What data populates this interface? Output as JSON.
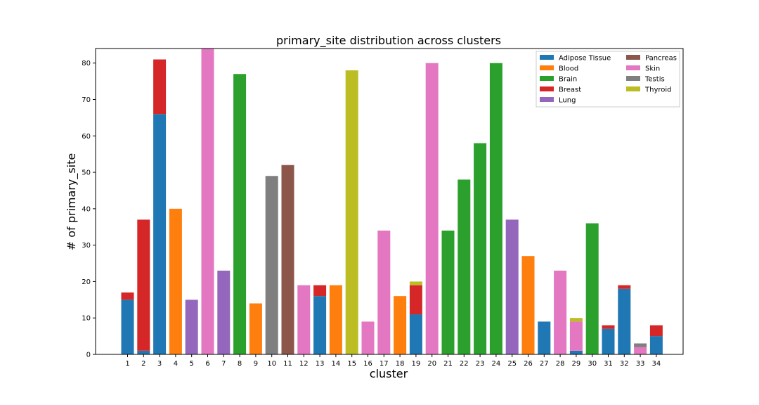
{
  "chart_data": {
    "type": "bar",
    "stacked": true,
    "title": "primary_site distribution across clusters",
    "xlabel": "cluster",
    "ylabel": "# of primary_site",
    "ylim": [
      0,
      84
    ],
    "yticks": [
      0,
      10,
      20,
      30,
      40,
      50,
      60,
      70,
      80
    ],
    "grid": false,
    "legend_position": "top-right",
    "categories": [
      "1",
      "2",
      "3",
      "4",
      "5",
      "6",
      "7",
      "8",
      "9",
      "10",
      "11",
      "12",
      "13",
      "14",
      "15",
      "16",
      "17",
      "18",
      "19",
      "20",
      "21",
      "22",
      "23",
      "24",
      "25",
      "26",
      "27",
      "28",
      "29",
      "30",
      "31",
      "32",
      "33",
      "34"
    ],
    "series": [
      {
        "name": "Adipose Tissue",
        "color": "#1f77b4",
        "values": [
          15,
          1,
          66,
          0,
          0,
          0,
          0,
          0,
          0,
          0,
          0,
          0,
          16,
          0,
          0,
          0,
          0,
          0,
          11,
          0,
          0,
          0,
          0,
          0,
          0,
          0,
          9,
          0,
          1,
          0,
          7,
          18,
          0,
          5
        ]
      },
      {
        "name": "Blood",
        "color": "#ff7f0e",
        "values": [
          0,
          0,
          0,
          40,
          0,
          0,
          0,
          0,
          14,
          0,
          0,
          0,
          0,
          19,
          0,
          0,
          0,
          16,
          0,
          0,
          0,
          0,
          0,
          0,
          0,
          27,
          0,
          0,
          0,
          0,
          0,
          0,
          0,
          0
        ]
      },
      {
        "name": "Brain",
        "color": "#2ca02c",
        "values": [
          0,
          0,
          0,
          0,
          0,
          0,
          0,
          77,
          0,
          0,
          0,
          0,
          0,
          0,
          0,
          0,
          0,
          0,
          0,
          0,
          34,
          48,
          58,
          80,
          0,
          0,
          0,
          0,
          0,
          36,
          0,
          0,
          0,
          0
        ]
      },
      {
        "name": "Breast",
        "color": "#d62728",
        "values": [
          2,
          36,
          15,
          0,
          0,
          0,
          0,
          0,
          0,
          0,
          0,
          0,
          3,
          0,
          0,
          0,
          0,
          0,
          8,
          0,
          0,
          0,
          0,
          0,
          0,
          0,
          0,
          0,
          0,
          0,
          1,
          1,
          0,
          3
        ]
      },
      {
        "name": "Lung",
        "color": "#9467bd",
        "values": [
          0,
          0,
          0,
          0,
          15,
          0,
          23,
          0,
          0,
          0,
          0,
          0,
          0,
          0,
          0,
          0,
          0,
          0,
          0,
          0,
          0,
          0,
          0,
          0,
          37,
          0,
          0,
          0,
          0,
          0,
          0,
          0,
          0,
          0
        ]
      },
      {
        "name": "Pancreas",
        "color": "#8c564b",
        "values": [
          0,
          0,
          0,
          0,
          0,
          0,
          0,
          0,
          0,
          0,
          52,
          0,
          0,
          0,
          0,
          0,
          0,
          0,
          0,
          0,
          0,
          0,
          0,
          0,
          0,
          0,
          0,
          0,
          0,
          0,
          0,
          0,
          0,
          0
        ]
      },
      {
        "name": "Skin",
        "color": "#e377c2",
        "values": [
          0,
          0,
          0,
          0,
          0,
          84,
          0,
          0,
          0,
          0,
          0,
          19,
          0,
          0,
          0,
          9,
          34,
          0,
          0,
          80,
          0,
          0,
          0,
          0,
          0,
          0,
          0,
          23,
          8,
          0,
          0,
          0,
          2,
          0
        ]
      },
      {
        "name": "Testis",
        "color": "#7f7f7f",
        "values": [
          0,
          0,
          0,
          0,
          0,
          0,
          0,
          0,
          0,
          49,
          0,
          0,
          0,
          0,
          0,
          0,
          0,
          0,
          0,
          0,
          0,
          0,
          0,
          0,
          0,
          0,
          0,
          0,
          0,
          0,
          0,
          0,
          1,
          0
        ]
      },
      {
        "name": "Thyroid",
        "color": "#bcbd22",
        "values": [
          0,
          0,
          0,
          0,
          0,
          0,
          0,
          0,
          0,
          0,
          0,
          0,
          0,
          0,
          78,
          0,
          0,
          0,
          1,
          0,
          0,
          0,
          0,
          0,
          0,
          0,
          0,
          0,
          1,
          0,
          0,
          0,
          0,
          0
        ]
      }
    ]
  }
}
